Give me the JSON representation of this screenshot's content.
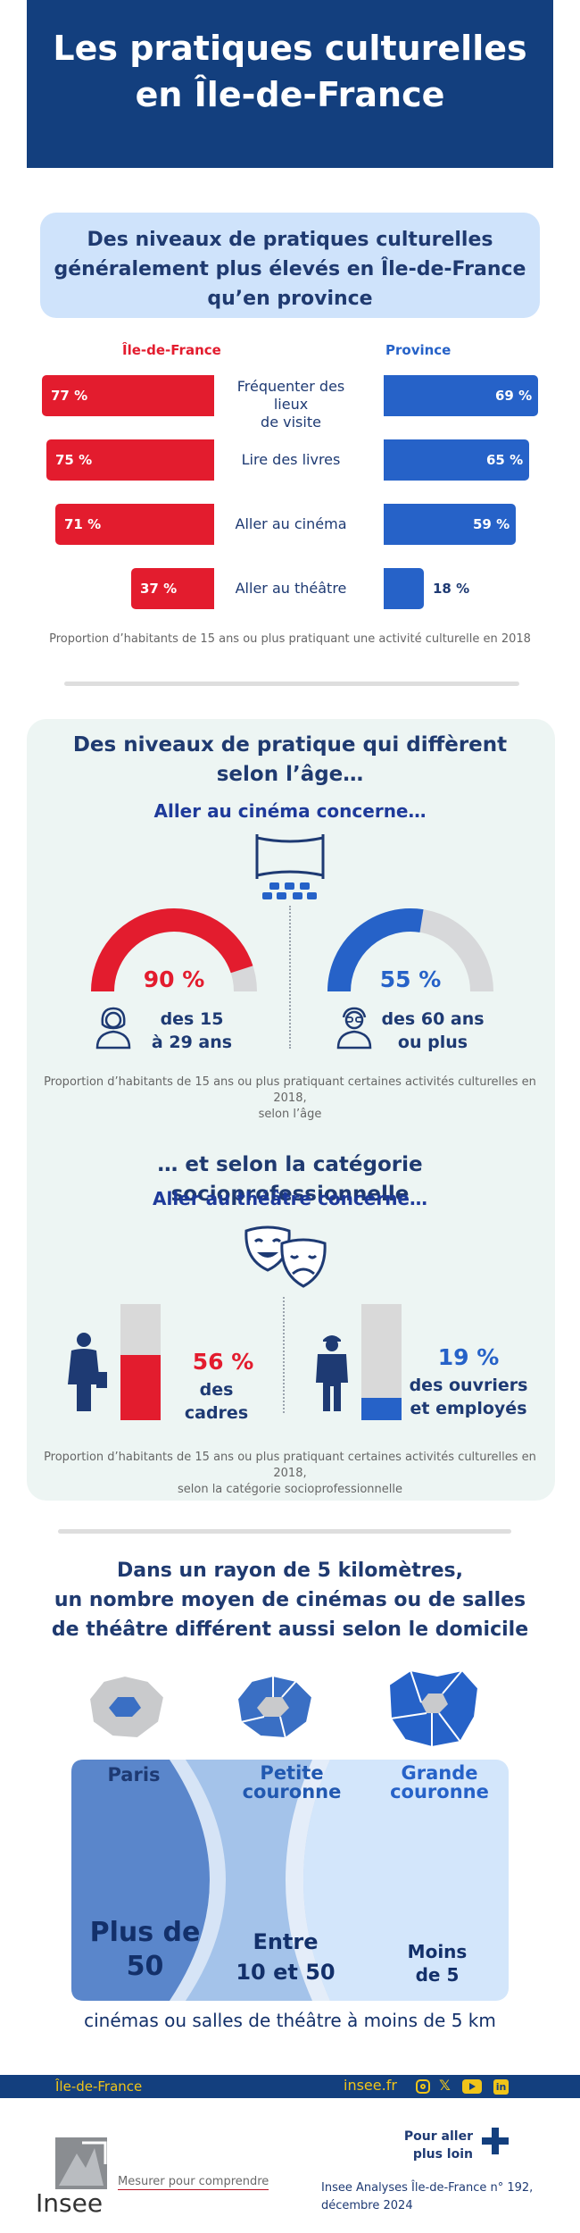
{
  "title": {
    "line1": "Les pratiques culturelles",
    "line2": "en Île-de-France"
  },
  "section1": {
    "heading": {
      "line1": "Des niveaux de pratiques culturelles",
      "line2": "généralement plus élevés en Île-de-France",
      "line3": "qu’en province"
    },
    "col_left": "Île-de-France",
    "col_right": "Province",
    "caption": "Proportion d’habitants de 15 ans ou plus pratiquant une activité culturelle en 2018",
    "chart_data": {
      "type": "bar",
      "categories": [
        "Fréquenter des lieux de visite",
        "Lire des livres",
        "Aller au cinéma",
        "Aller au théâtre"
      ],
      "series": [
        {
          "name": "Île-de-France",
          "values": [
            77,
            75,
            71,
            37
          ],
          "labels": [
            "77 %",
            "75 %",
            "71 %",
            "37 %"
          ],
          "color": "#e31c2e"
        },
        {
          "name": "Province",
          "values": [
            69,
            65,
            59,
            18
          ],
          "labels": [
            "69 %",
            "65 %",
            "59 %",
            "18 %"
          ],
          "color": "#2662c8"
        }
      ],
      "category_lines": [
        [
          "Fréquenter des lieux",
          "de visite"
        ],
        [
          "Lire des livres"
        ],
        [
          "Aller au cinéma"
        ],
        [
          "Aller au théâtre"
        ]
      ]
    }
  },
  "section2": {
    "heading": {
      "line1": "Des niveaux de pratique qui diffèrent",
      "line2": "selon l’âge…"
    },
    "sub": "Aller au cinéma concerne…",
    "gauges": [
      {
        "value": 90,
        "label": "90 %",
        "line1": "des 15",
        "line2": "à 29 ans",
        "color": "#e31c2e"
      },
      {
        "value": 55,
        "label": "55 %",
        "line1": "des 60 ans",
        "line2": "ou plus",
        "color": "#2662c8"
      }
    ],
    "caption": {
      "line1": "Proportion d’habitants de 15 ans ou plus pratiquant certaines activités culturelles en 2018,",
      "line2": "selon l’âge"
    }
  },
  "section3": {
    "heading": "… et selon la catégorie socioprofessionnelle",
    "sub": "Aller au théâtre concerne…",
    "bars": [
      {
        "value": 56,
        "label": "56 %",
        "line1": "des cadres",
        "line2": "",
        "color": "#e31c2e"
      },
      {
        "value": 19,
        "label": "19 %",
        "line1": "des ouvriers",
        "line2": "et employés",
        "color": "#2662c8"
      }
    ],
    "caption": {
      "line1": "Proportion d’habitants de 15 ans ou plus pratiquant certaines activités culturelles en 2018,",
      "line2": "selon la catégorie socioprofessionnelle"
    }
  },
  "section4": {
    "heading": {
      "line1": "Dans un rayon de 5 kilomètres,",
      "line2": "un nombre moyen de cinémas ou de salles",
      "line3": "de théâtre différent aussi selon le domicile"
    },
    "zones": [
      {
        "name1": "Paris",
        "name2": "",
        "value1": "Plus de",
        "value2": "50"
      },
      {
        "name1": "Petite",
        "name2": "couronne",
        "value1": "Entre",
        "value2": "10 et 50"
      },
      {
        "name1": "Grande",
        "name2": "couronne",
        "value1": "Moins",
        "value2": "de 5"
      }
    ],
    "footnote": "cinémas ou salles de théâtre à moins de 5 km"
  },
  "footer": {
    "region": "Île-de-France",
    "site": "insee.fr",
    "more1": "Pour aller",
    "more2": "plus loin",
    "logo_text": "Insee",
    "tagline": "Mesurer pour comprendre",
    "ref1": "Insee Analyses Île-de-France n° 192,",
    "ref2": "décembre 2024"
  }
}
